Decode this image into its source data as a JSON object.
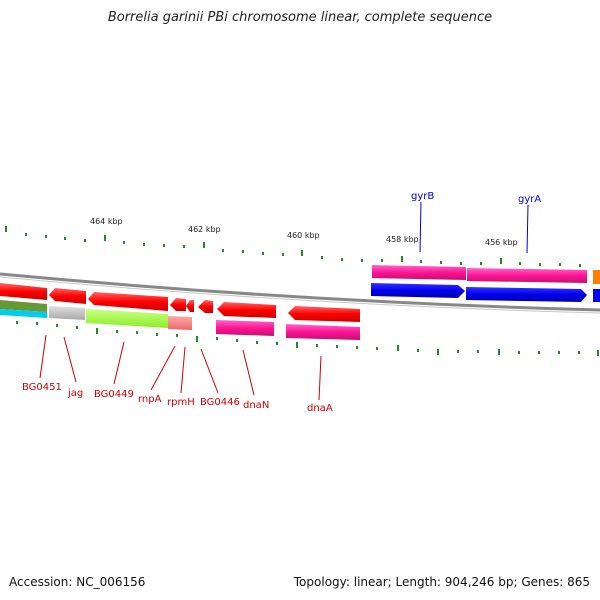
{
  "title": "Borrelia garinii PBi chromosome linear, complete sequence",
  "footer": {
    "accession": "Accession: NC_006156",
    "summary": "Topology: linear; Length: 904,246 bp; Genes: 865"
  },
  "scale_labels": [
    "464 kbp",
    "462 kbp",
    "460 kbp",
    "458 kbp",
    "456 kbp"
  ],
  "gene_labels": {
    "top": [
      "gyrB",
      "gyrA"
    ],
    "bottom": [
      "BG0451",
      "jag",
      "BG0449",
      "rnpA",
      "rpmH",
      "BG0446",
      "dnaN",
      "dnaA"
    ]
  },
  "colors": {
    "red_gene": "#ff0000",
    "pink_gene": "#ff1493",
    "blue_gene": "#0000ee",
    "gray_gene": "#c0c0c0",
    "lime_gene": "#99ff33",
    "salmon_gene": "#ff8080",
    "olive_gene": "#669933",
    "cyan_gene": "#00ccee",
    "orange_gene": "#ff8000",
    "scale_tick": "#228b22",
    "label_red": "#cc0000",
    "label_blue": "#0000cc"
  }
}
